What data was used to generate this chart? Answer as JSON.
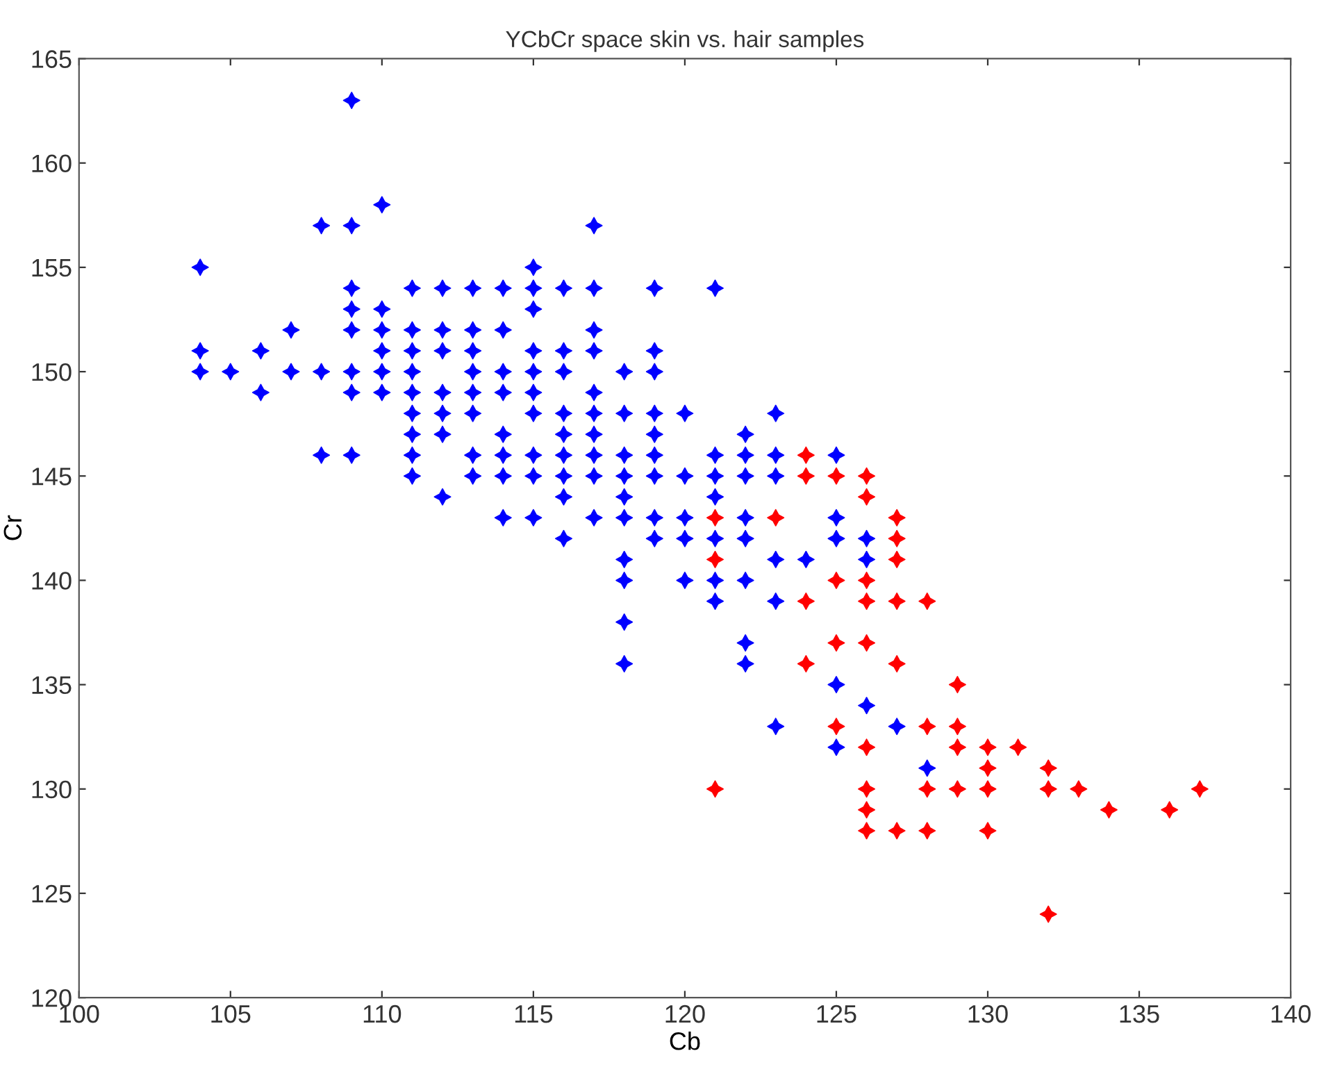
{
  "chart_data": {
    "type": "scatter",
    "title": "YCbCr space skin vs. hair samples",
    "xlabel": "Cb",
    "ylabel": "Cr",
    "xlim": [
      100,
      140
    ],
    "xticks": [
      100,
      105,
      110,
      115,
      120,
      125,
      130,
      135,
      140
    ],
    "ylim": [
      120,
      165
    ],
    "yticks": [
      120,
      125,
      130,
      135,
      140,
      145,
      150,
      155,
      160,
      165
    ],
    "grid": false,
    "legend": false,
    "marker": "star",
    "series": [
      {
        "color": "#0000ff",
        "x": [
          104,
          104,
          104,
          105,
          106,
          106,
          107,
          107,
          108,
          108,
          108,
          109,
          109,
          109,
          109,
          109,
          109,
          109,
          109,
          110,
          110,
          110,
          110,
          110,
          110,
          111,
          111,
          111,
          111,
          111,
          111,
          111,
          111,
          111,
          112,
          112,
          112,
          112,
          112,
          112,
          112,
          113,
          113,
          113,
          113,
          113,
          113,
          113,
          113,
          114,
          114,
          114,
          114,
          114,
          114,
          114,
          114,
          115,
          115,
          115,
          115,
          115,
          115,
          115,
          115,
          115,
          115,
          116,
          116,
          116,
          116,
          116,
          116,
          116,
          116,
          116,
          117,
          117,
          117,
          117,
          117,
          117,
          117,
          117,
          117,
          117,
          118,
          118,
          118,
          118,
          118,
          118,
          118,
          118,
          118,
          118,
          119,
          119,
          119,
          119,
          119,
          119,
          119,
          119,
          119,
          120,
          120,
          120,
          120,
          120,
          121,
          121,
          121,
          121,
          121,
          121,
          121,
          122,
          122,
          122,
          122,
          122,
          122,
          122,
          122,
          123,
          123,
          123,
          123,
          123,
          123,
          124,
          125,
          125,
          125,
          125,
          125,
          126,
          126,
          126,
          127,
          128
        ],
        "values": [
          155,
          151,
          150,
          150,
          151,
          149,
          152,
          150,
          157,
          150,
          146,
          163,
          157,
          154,
          153,
          152,
          150,
          149,
          146,
          158,
          153,
          152,
          151,
          150,
          149,
          154,
          152,
          151,
          150,
          149,
          148,
          147,
          146,
          145,
          154,
          152,
          151,
          149,
          148,
          147,
          144,
          154,
          152,
          151,
          150,
          149,
          148,
          146,
          145,
          154,
          152,
          150,
          149,
          147,
          146,
          145,
          143,
          155,
          154,
          153,
          151,
          150,
          149,
          148,
          146,
          145,
          143,
          154,
          151,
          150,
          148,
          147,
          146,
          145,
          144,
          142,
          157,
          154,
          152,
          151,
          149,
          148,
          147,
          146,
          145,
          143,
          150,
          148,
          146,
          145,
          144,
          143,
          141,
          140,
          138,
          136,
          154,
          151,
          150,
          148,
          147,
          146,
          145,
          143,
          142,
          148,
          145,
          143,
          142,
          140,
          154,
          146,
          145,
          144,
          142,
          140,
          139,
          147,
          146,
          145,
          143,
          142,
          140,
          137,
          136,
          148,
          146,
          145,
          141,
          139,
          133,
          141,
          146,
          143,
          142,
          135,
          132,
          142,
          141,
          134,
          133,
          131
        ]
      },
      {
        "color": "#ff0000",
        "x": [
          121,
          121,
          121,
          123,
          124,
          124,
          124,
          124,
          125,
          125,
          125,
          125,
          126,
          126,
          126,
          126,
          126,
          126,
          126,
          126,
          126,
          127,
          127,
          127,
          127,
          127,
          127,
          128,
          128,
          128,
          128,
          129,
          129,
          129,
          129,
          130,
          130,
          130,
          130,
          131,
          132,
          132,
          132,
          133,
          134,
          136,
          137
        ],
        "values": [
          143,
          141,
          130,
          143,
          146,
          145,
          139,
          136,
          145,
          140,
          137,
          133,
          145,
          144,
          140,
          139,
          137,
          132,
          130,
          129,
          128,
          143,
          142,
          141,
          139,
          136,
          128,
          139,
          133,
          130,
          128,
          135,
          133,
          132,
          130,
          132,
          131,
          130,
          128,
          132,
          131,
          130,
          124,
          130,
          129,
          129,
          130
        ]
      }
    ]
  }
}
